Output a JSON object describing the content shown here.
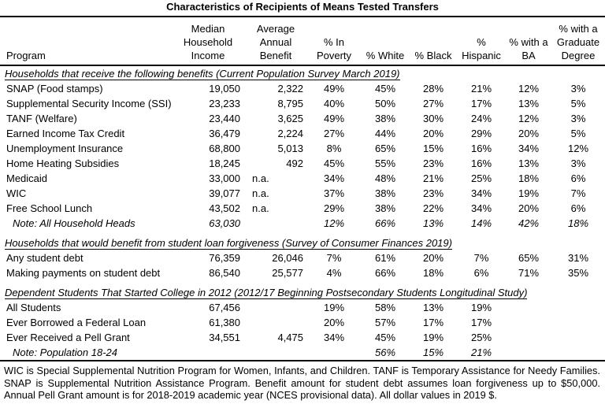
{
  "title": "Characteristics of Recipients of Means Tested Transfers",
  "table": {
    "columns": [
      {
        "key": "program",
        "label": "Program",
        "align": "left"
      },
      {
        "key": "income",
        "label": "Median\nHousehold\nIncome",
        "align": "right"
      },
      {
        "key": "benefit",
        "label": "Average\nAnnual\nBenefit",
        "align": "right"
      },
      {
        "key": "poverty",
        "label": "% In\nPoverty",
        "align": "center"
      },
      {
        "key": "white",
        "label": "% White",
        "align": "center"
      },
      {
        "key": "black",
        "label": "% Black",
        "align": "center"
      },
      {
        "key": "hispanic",
        "label": "%\nHispanic",
        "align": "center"
      },
      {
        "key": "ba",
        "label": "% with a\nBA",
        "align": "center"
      },
      {
        "key": "grad",
        "label": "% with a\nGraduate\nDegree",
        "align": "center"
      }
    ],
    "sections": [
      {
        "heading": "Households that receive the following benefits (Current Population Survey March 2019)",
        "rows": [
          {
            "program": "SNAP (Food stamps)",
            "income": "19,050",
            "benefit": "2,322",
            "poverty": "49%",
            "white": "45%",
            "black": "28%",
            "hispanic": "21%",
            "ba": "12%",
            "grad": "3%"
          },
          {
            "program": "Supplemental Security Income (SSI)",
            "income": "23,233",
            "benefit": "8,795",
            "poverty": "40%",
            "white": "50%",
            "black": "27%",
            "hispanic": "17%",
            "ba": "13%",
            "grad": "5%"
          },
          {
            "program": "TANF (Welfare)",
            "income": "23,440",
            "benefit": "3,625",
            "poverty": "49%",
            "white": "38%",
            "black": "30%",
            "hispanic": "24%",
            "ba": "12%",
            "grad": "3%"
          },
          {
            "program": "Earned Income Tax Credit",
            "income": "36,479",
            "benefit": "2,224",
            "poverty": "27%",
            "white": "44%",
            "black": "20%",
            "hispanic": "29%",
            "ba": "20%",
            "grad": "5%"
          },
          {
            "program": "Unemployment Insurance",
            "income": "68,800",
            "benefit": "5,013",
            "poverty": "8%",
            "white": "65%",
            "black": "15%",
            "hispanic": "16%",
            "ba": "34%",
            "grad": "12%"
          },
          {
            "program": "Home Heating Subsidies",
            "income": "18,245",
            "benefit": "492",
            "poverty": "45%",
            "white": "55%",
            "black": "23%",
            "hispanic": "16%",
            "ba": "13%",
            "grad": "3%"
          },
          {
            "program": "Medicaid",
            "income": "33,000",
            "benefit": "n.a.",
            "poverty": "34%",
            "white": "48%",
            "black": "21%",
            "hispanic": "25%",
            "ba": "18%",
            "grad": "6%"
          },
          {
            "program": "WIC",
            "income": "39,077",
            "benefit": "n.a.",
            "poverty": "37%",
            "white": "38%",
            "black": "23%",
            "hispanic": "34%",
            "ba": "19%",
            "grad": "7%"
          },
          {
            "program": "Free School Lunch",
            "income": "43,502",
            "benefit": "n.a.",
            "poverty": "29%",
            "white": "38%",
            "black": "22%",
            "hispanic": "34%",
            "ba": "20%",
            "grad": "6%"
          },
          {
            "program": "Note: All Household Heads",
            "income": "63,030",
            "benefit": "",
            "poverty": "12%",
            "white": "66%",
            "black": "13%",
            "hispanic": "14%",
            "ba": "42%",
            "grad": "18%",
            "note": true
          }
        ]
      },
      {
        "heading": "Households that would benefit from student loan forgiveness (Survey of Consumer Finances 2019)",
        "rows": [
          {
            "program": "Any student debt",
            "income": "76,359",
            "benefit": "26,046",
            "poverty": "7%",
            "white": "61%",
            "black": "20%",
            "hispanic": "7%",
            "ba": "65%",
            "grad": "31%"
          },
          {
            "program": "Making payments on student debt",
            "income": "86,540",
            "benefit": "25,577",
            "poverty": "4%",
            "white": "66%",
            "black": "18%",
            "hispanic": "6%",
            "ba": "71%",
            "grad": "35%"
          }
        ]
      },
      {
        "heading": "Dependent Students That Started College in 2012 (2012/17 Beginning Postsecondary Students Longitudinal Study)",
        "rows": [
          {
            "program": "All Students",
            "income": "67,456",
            "benefit": "",
            "poverty": "19%",
            "white": "58%",
            "black": "13%",
            "hispanic": "19%",
            "ba": "",
            "grad": ""
          },
          {
            "program": "Ever Borrowed a Federal Loan",
            "income": "61,380",
            "benefit": "",
            "poverty": "20%",
            "white": "57%",
            "black": "17%",
            "hispanic": "17%",
            "ba": "",
            "grad": ""
          },
          {
            "program": "Ever Received a Pell Grant",
            "income": "34,551",
            "benefit": "4,475",
            "poverty": "34%",
            "white": "45%",
            "black": "19%",
            "hispanic": "25%",
            "ba": "",
            "grad": ""
          },
          {
            "program": "Note: Population 18-24",
            "income": "",
            "benefit": "",
            "poverty": "",
            "white": "56%",
            "black": "15%",
            "hispanic": "21%",
            "ba": "",
            "grad": "",
            "note": true
          }
        ]
      }
    ]
  },
  "footnote": "WIC is Special Supplemental Nutrition Program for Women, Infants, and Children. TANF is Temporary Assistance for Needy Families. SNAP is Supplemental Nutrition Assistance Program. Benefit amount for student debt assumes loan forgiveness up to $50,000. Annual Pell Grant amount is for 2018-2019 academic year (NCES provisional data). All dollar values in 2019 $."
}
